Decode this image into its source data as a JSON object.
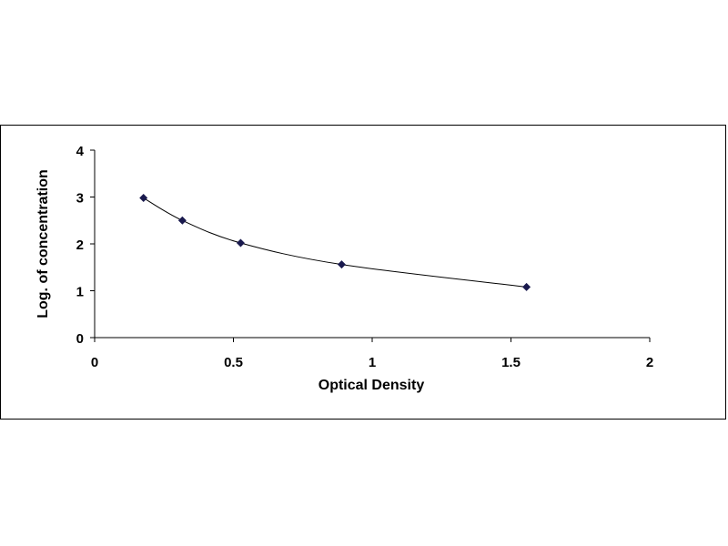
{
  "chart_data": {
    "type": "scatter",
    "title": "",
    "xlabel": "Optical Density",
    "ylabel": "Log. of concentration",
    "xlim": [
      0,
      2
    ],
    "ylim": [
      0,
      4
    ],
    "x_ticks": [
      "0",
      "0.5",
      "1",
      "1.5",
      "2"
    ],
    "y_ticks": [
      "0",
      "1",
      "2",
      "3",
      "4"
    ],
    "grid": false,
    "legend": "none",
    "series": [
      {
        "x": [
          0.176,
          0.316,
          0.526,
          0.89,
          1.556
        ],
        "y": [
          2.98,
          2.5,
          2.02,
          1.56,
          1.08
        ],
        "marker": "diamond",
        "trendline": "smooth",
        "color": "#1a1a4e"
      }
    ]
  }
}
